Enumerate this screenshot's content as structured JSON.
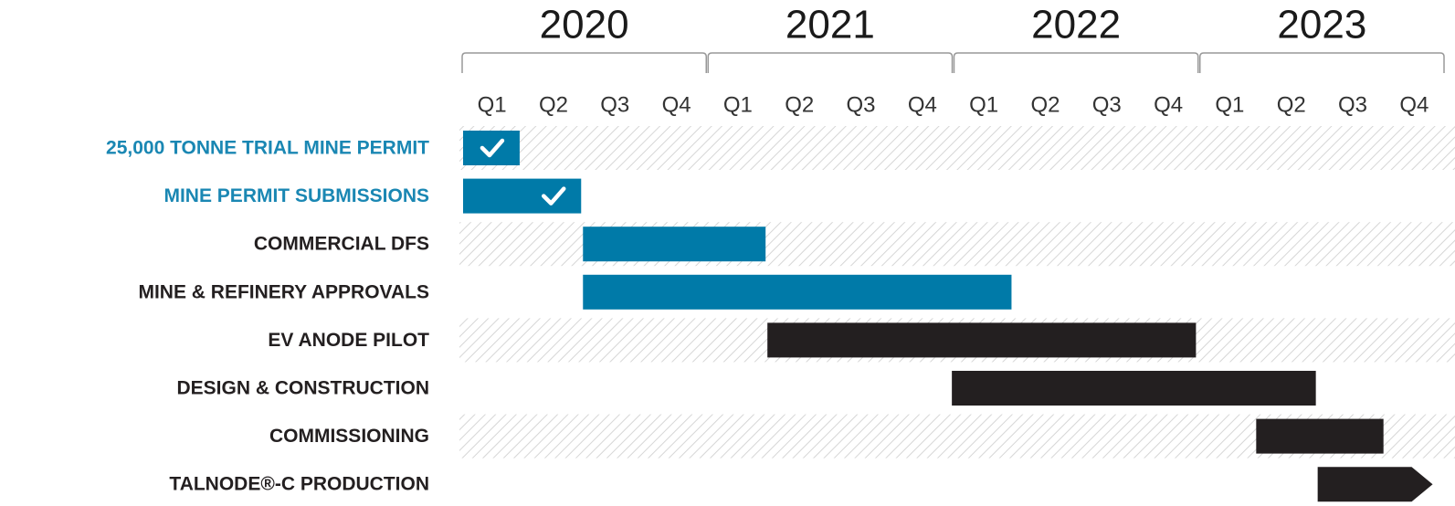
{
  "chart_data": {
    "type": "gantt",
    "years": [
      "2020",
      "2021",
      "2022",
      "2023"
    ],
    "year_ticks": [
      0,
      4,
      8,
      12,
      16
    ],
    "quarters": [
      "Q1",
      "Q2",
      "Q3",
      "Q4",
      "Q1",
      "Q2",
      "Q3",
      "Q4",
      "Q1",
      "Q2",
      "Q3",
      "Q4",
      "Q1",
      "Q2",
      "Q3",
      "Q4"
    ],
    "xlim": [
      0,
      16
    ],
    "striped_rows": true,
    "tasks": [
      {
        "name": "25,000 TONNE TRIAL MINE PERMIT",
        "start": 0,
        "end": 0.95,
        "color": "#007aa8",
        "label_color": "#1a87b3",
        "done": true
      },
      {
        "name": "MINE PERMIT SUBMISSIONS",
        "start": 0,
        "end": 1.95,
        "color": "#007aa8",
        "label_color": "#1a87b3",
        "done": true
      },
      {
        "name": "COMMERCIAL DFS",
        "start": 1.95,
        "end": 4.95,
        "color": "#007aa8",
        "label_color": "#231f20"
      },
      {
        "name": "MINE & REFINERY APPROVALS",
        "start": 1.95,
        "end": 8.95,
        "color": "#007aa8",
        "label_color": "#231f20"
      },
      {
        "name": "EV ANODE PILOT",
        "start": 4.95,
        "end": 11.95,
        "color": "#231f20",
        "label_color": "#231f20"
      },
      {
        "name": "DESIGN & CONSTRUCTION",
        "start": 7.95,
        "end": 13.9,
        "color": "#231f20",
        "label_color": "#231f20"
      },
      {
        "name": "COMMISSIONING",
        "start": 12.9,
        "end": 15,
        "color": "#231f20",
        "label_color": "#231f20"
      },
      {
        "name": "TALNODE®-C PRODUCTION",
        "start": 13.9,
        "end": 15.8,
        "color": "#231f20",
        "label_color": "#231f20",
        "arrow": true
      }
    ]
  }
}
